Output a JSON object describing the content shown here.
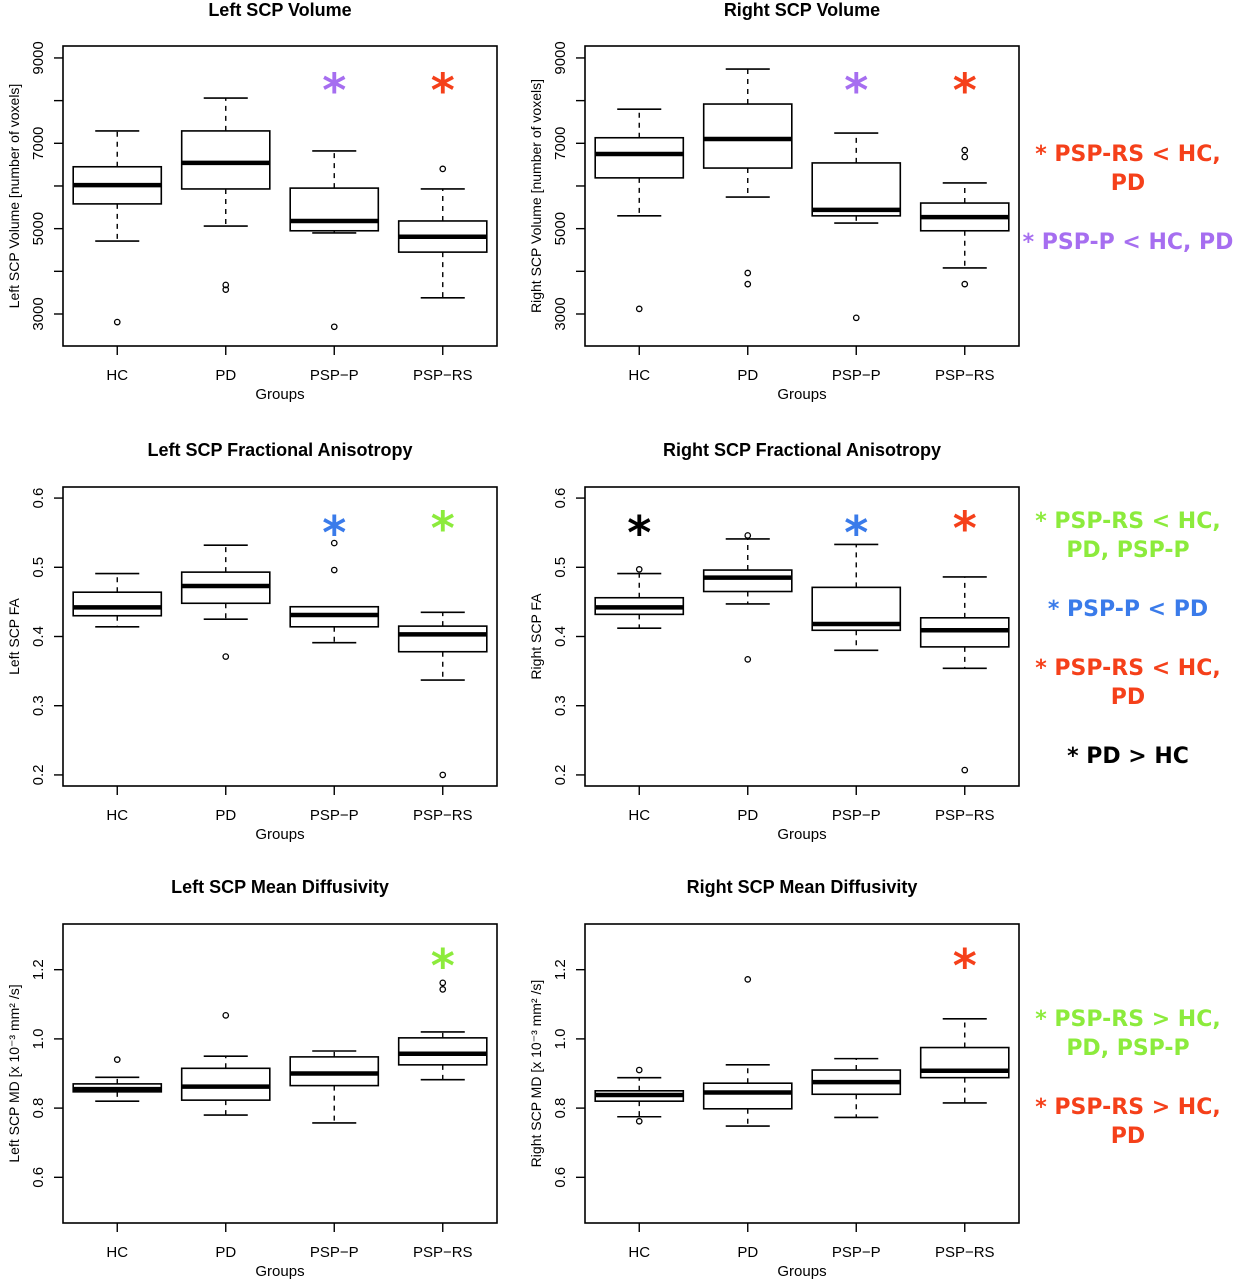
{
  "colors": {
    "purple": "#A66EF0",
    "red": "#F5401A",
    "green": "#8CEB3C",
    "blue": "#3A7BEA",
    "black": "#000000"
  },
  "chart_data": [
    {
      "id": "left-volume",
      "type": "boxplot",
      "title": "Left SCP Volume",
      "xlabel": "Groups",
      "ylabel": "Left SCP Volume [number of voxels]",
      "categories": [
        "HC",
        "PD",
        "PSP−P",
        "PSP−RS"
      ],
      "ylim": [
        2250,
        9280
      ],
      "yticks": [
        3000,
        4000,
        5000,
        6000,
        7000,
        8000,
        9000
      ],
      "ytick_labels": [
        "3000",
        "",
        "5000",
        "",
        "7000",
        "",
        "9000"
      ],
      "boxes": [
        {
          "whisker_low": 4710,
          "q1": 5580,
          "median": 6020,
          "q3": 6450,
          "whisker_high": 7290,
          "outliers": [
            2810
          ]
        },
        {
          "whisker_low": 5060,
          "q1": 5930,
          "median": 6540,
          "q3": 7290,
          "whisker_high": 8060,
          "outliers": [
            3680,
            3570
          ]
        },
        {
          "whisker_low": 4900,
          "q1": 4950,
          "median": 5180,
          "q3": 5950,
          "whisker_high": 6820,
          "outliers": [
            2700
          ]
        },
        {
          "whisker_low": 3380,
          "q1": 4450,
          "median": 4810,
          "q3": 5180,
          "whisker_high": 5930,
          "outliers": [
            6400
          ]
        }
      ],
      "markers": [
        {
          "category": 2,
          "y": 8330,
          "label": "*",
          "color": "purple"
        },
        {
          "category": 3,
          "y": 8330,
          "label": "*",
          "color": "red"
        }
      ]
    },
    {
      "id": "right-volume",
      "type": "boxplot",
      "title": "Right SCP Volume",
      "xlabel": "Groups",
      "ylabel": "Right SCP Volume [number of voxels]",
      "categories": [
        "HC",
        "PD",
        "PSP−P",
        "PSP−RS"
      ],
      "ylim": [
        2250,
        9280
      ],
      "yticks": [
        3000,
        4000,
        5000,
        6000,
        7000,
        8000,
        9000
      ],
      "ytick_labels": [
        "3000",
        "",
        "5000",
        "",
        "7000",
        "",
        "9000"
      ],
      "boxes": [
        {
          "whisker_low": 5300,
          "q1": 6190,
          "median": 6750,
          "q3": 7130,
          "whisker_high": 7800,
          "outliers": [
            3120
          ]
        },
        {
          "whisker_low": 5740,
          "q1": 6420,
          "median": 7100,
          "q3": 7920,
          "whisker_high": 8740,
          "outliers": [
            3960,
            3700
          ]
        },
        {
          "whisker_low": 5130,
          "q1": 5300,
          "median": 5440,
          "q3": 6540,
          "whisker_high": 7240,
          "outliers": [
            2910
          ]
        },
        {
          "whisker_low": 4080,
          "q1": 4950,
          "median": 5270,
          "q3": 5600,
          "whisker_high": 6070,
          "outliers": [
            6840,
            6680,
            3700
          ]
        }
      ],
      "markers": [
        {
          "category": 2,
          "y": 8330,
          "label": "*",
          "color": "purple"
        },
        {
          "category": 3,
          "y": 8330,
          "label": "*",
          "color": "red"
        }
      ]
    },
    {
      "id": "left-fa",
      "type": "boxplot",
      "title": "Left SCP Fractional Anisotropy",
      "xlabel": "Groups",
      "ylabel": "Left SCP FA",
      "categories": [
        "HC",
        "PD",
        "PSP−P",
        "PSP−RS"
      ],
      "ylim": [
        0.184,
        0.616
      ],
      "yticks": [
        0.2,
        0.3,
        0.4,
        0.5,
        0.6
      ],
      "ytick_labels": [
        "0.2",
        "0.3",
        "0.4",
        "0.5",
        "0.6"
      ],
      "boxes": [
        {
          "whisker_low": 0.414,
          "q1": 0.43,
          "median": 0.442,
          "q3": 0.464,
          "whisker_high": 0.491,
          "outliers": []
        },
        {
          "whisker_low": 0.425,
          "q1": 0.448,
          "median": 0.473,
          "q3": 0.493,
          "whisker_high": 0.532,
          "outliers": [
            0.371
          ]
        },
        {
          "whisker_low": 0.391,
          "q1": 0.414,
          "median": 0.431,
          "q3": 0.443,
          "whisker_high": 0.443,
          "outliers": [
            0.535,
            0.496
          ]
        },
        {
          "whisker_low": 0.337,
          "q1": 0.378,
          "median": 0.403,
          "q3": 0.415,
          "whisker_high": 0.435,
          "outliers": [
            0.2
          ]
        }
      ],
      "markers": [
        {
          "category": 2,
          "y": 0.555,
          "label": "*",
          "color": "blue"
        },
        {
          "category": 3,
          "y": 0.562,
          "label": "*",
          "color": "green"
        }
      ]
    },
    {
      "id": "right-fa",
      "type": "boxplot",
      "title": "Right SCP Fractional Anisotropy",
      "xlabel": "Groups",
      "ylabel": "Right SCP FA",
      "categories": [
        "HC",
        "PD",
        "PSP−P",
        "PSP−RS"
      ],
      "ylim": [
        0.184,
        0.616
      ],
      "yticks": [
        0.2,
        0.3,
        0.4,
        0.5,
        0.6
      ],
      "ytick_labels": [
        "0.2",
        "0.3",
        "0.4",
        "0.5",
        "0.6"
      ],
      "boxes": [
        {
          "whisker_low": 0.412,
          "q1": 0.432,
          "median": 0.442,
          "q3": 0.456,
          "whisker_high": 0.491,
          "outliers": [
            0.497
          ]
        },
        {
          "whisker_low": 0.447,
          "q1": 0.465,
          "median": 0.485,
          "q3": 0.496,
          "whisker_high": 0.541,
          "outliers": [
            0.546,
            0.367
          ]
        },
        {
          "whisker_low": 0.38,
          "q1": 0.409,
          "median": 0.418,
          "q3": 0.471,
          "whisker_high": 0.533,
          "outliers": []
        },
        {
          "whisker_low": 0.354,
          "q1": 0.385,
          "median": 0.409,
          "q3": 0.427,
          "whisker_high": 0.486,
          "outliers": [
            0.207
          ]
        }
      ],
      "markers": [
        {
          "category": 0,
          "y": 0.555,
          "label": "*",
          "color": "black"
        },
        {
          "category": 2,
          "y": 0.555,
          "label": "*",
          "color": "blue"
        },
        {
          "category": 3,
          "y": 0.562,
          "label": "*",
          "color": "red"
        }
      ]
    },
    {
      "id": "left-md",
      "type": "boxplot",
      "title": "Left SCP Mean Diffusivity",
      "xlabel": "Groups",
      "ylabel": "Left SCP MD [x 10⁻³ mm² /s]",
      "categories": [
        "HC",
        "PD",
        "PSP−P",
        "PSP−RS"
      ],
      "ylim": [
        0.468,
        1.332
      ],
      "yticks": [
        0.6,
        0.8,
        1.0,
        1.2
      ],
      "ytick_labels": [
        "0.6",
        "0.8",
        "1.0",
        "1.2"
      ],
      "boxes": [
        {
          "whisker_low": 0.82,
          "q1": 0.847,
          "median": 0.855,
          "q3": 0.87,
          "whisker_high": 0.889,
          "outliers": [
            0.94
          ]
        },
        {
          "whisker_low": 0.78,
          "q1": 0.823,
          "median": 0.862,
          "q3": 0.915,
          "whisker_high": 0.95,
          "outliers": [
            1.068
          ]
        },
        {
          "whisker_low": 0.757,
          "q1": 0.865,
          "median": 0.9,
          "q3": 0.948,
          "whisker_high": 0.965,
          "outliers": []
        },
        {
          "whisker_low": 0.882,
          "q1": 0.925,
          "median": 0.957,
          "q3": 1.003,
          "whisker_high": 1.02,
          "outliers": [
            1.162,
            1.143
          ]
        }
      ],
      "markers": [
        {
          "category": 3,
          "y": 1.222,
          "label": "*",
          "color": "green"
        }
      ]
    },
    {
      "id": "right-md",
      "type": "boxplot",
      "title": "Right SCP Mean Diffusivity",
      "xlabel": "Groups",
      "ylabel": "Right SCP MD [x 10⁻³ mm² /s]",
      "categories": [
        "HC",
        "PD",
        "PSP−P",
        "PSP−RS"
      ],
      "ylim": [
        0.468,
        1.332
      ],
      "yticks": [
        0.6,
        0.8,
        1.0,
        1.2
      ],
      "ytick_labels": [
        "0.6",
        "0.8",
        "1.0",
        "1.2"
      ],
      "boxes": [
        {
          "whisker_low": 0.775,
          "q1": 0.82,
          "median": 0.838,
          "q3": 0.85,
          "whisker_high": 0.888,
          "outliers": [
            0.91,
            0.762
          ]
        },
        {
          "whisker_low": 0.748,
          "q1": 0.798,
          "median": 0.845,
          "q3": 0.872,
          "whisker_high": 0.925,
          "outliers": [
            1.172
          ]
        },
        {
          "whisker_low": 0.773,
          "q1": 0.84,
          "median": 0.875,
          "q3": 0.91,
          "whisker_high": 0.943,
          "outliers": []
        },
        {
          "whisker_low": 0.815,
          "q1": 0.888,
          "median": 0.908,
          "q3": 0.975,
          "whisker_high": 1.058,
          "outliers": []
        }
      ],
      "markers": [
        {
          "category": 3,
          "y": 1.222,
          "label": "*",
          "color": "red"
        }
      ]
    }
  ],
  "legends": [
    {
      "row": "volume",
      "items": [
        {
          "lines": [
            "* PSP-RS < HC,",
            "PD"
          ],
          "color": "red"
        },
        {
          "lines": [
            "* PSP-P < HC, PD"
          ],
          "color": "purple"
        }
      ]
    },
    {
      "row": "fa",
      "items": [
        {
          "lines": [
            "* PSP-RS < HC,",
            "PD, PSP-P"
          ],
          "color": "green"
        },
        {
          "lines": [
            "* PSP-P < PD"
          ],
          "color": "blue"
        },
        {
          "lines": [
            "* PSP-RS < HC,",
            "PD"
          ],
          "color": "red"
        },
        {
          "lines": [
            "* PD > HC"
          ],
          "color": "black"
        }
      ]
    },
    {
      "row": "md",
      "items": [
        {
          "lines": [
            "* PSP-RS > HC,",
            "PD, PSP-P"
          ],
          "color": "green"
        },
        {
          "lines": [
            "* PSP-RS > HC,",
            "PD"
          ],
          "color": "red"
        }
      ]
    }
  ]
}
